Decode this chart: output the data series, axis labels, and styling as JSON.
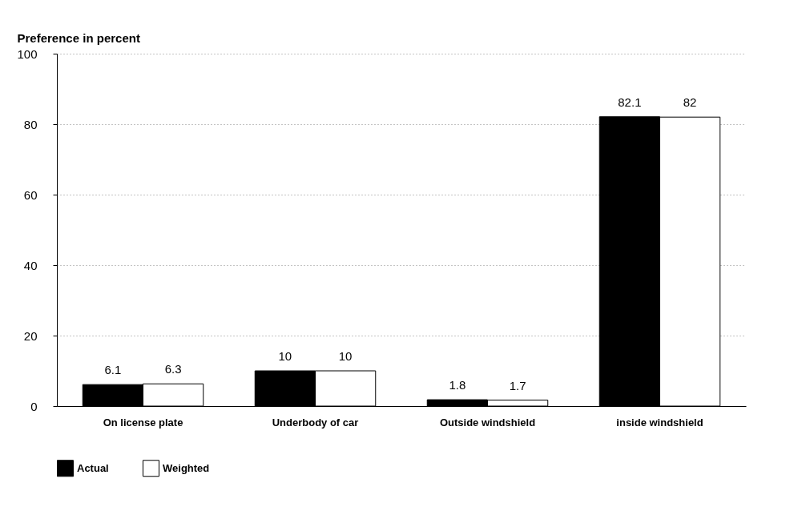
{
  "chart_data": {
    "type": "bar",
    "ylabel": "Preference in percent",
    "categories": [
      "On license plate",
      "Underbody of car",
      "Outside windshield",
      "inside windshield"
    ],
    "series": [
      {
        "name": "Actual",
        "color": "#000000",
        "values": [
          6.1,
          10,
          1.8,
          82.1
        ]
      },
      {
        "name": "Weighted",
        "color": "#ffffff",
        "values": [
          6.3,
          10,
          1.7,
          82
        ]
      }
    ],
    "ylim": [
      0,
      100
    ],
    "yticks": [
      0,
      20,
      40,
      60,
      80,
      100
    ],
    "grid": "y",
    "legend": "bottom",
    "data_labels": true
  }
}
